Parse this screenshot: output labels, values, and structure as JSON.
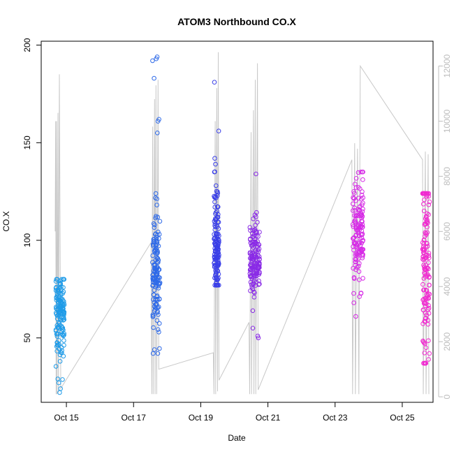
{
  "chart_data": {
    "type": "scatter",
    "title": "ATOM3 Northbound CO.X",
    "xlabel": "Date",
    "ylabel": "CO.X",
    "xlim": [
      "2014-10-14T06:00",
      "2014-10-25T22:00"
    ],
    "ylim": [
      17,
      202
    ],
    "y2lim": [
      -200,
      12900
    ],
    "x_ticks": [
      {
        "date": "2014-10-15",
        "label": "Oct 15"
      },
      {
        "date": "2014-10-17",
        "label": "Oct 17"
      },
      {
        "date": "2014-10-19",
        "label": "Oct 19"
      },
      {
        "date": "2014-10-21",
        "label": "Oct 21"
      },
      {
        "date": "2014-10-23",
        "label": "Oct 23"
      },
      {
        "date": "2014-10-25",
        "label": "Oct 25"
      }
    ],
    "y_ticks": [
      50,
      100,
      150,
      200
    ],
    "y2_ticks": [
      0,
      2000,
      4000,
      6000,
      8000,
      10000,
      12000
    ],
    "grid": false,
    "colors": {
      "axis": "#000000",
      "right_axis": "#bdbdbd",
      "gray_line": "#c8c8c8"
    },
    "point_groups": [
      {
        "t0": "2014-10-14T16:30",
        "t1": "2014-10-14T22:30",
        "color": "#1e9be8",
        "y_mean": 62,
        "y_sd": 12,
        "y_min": 22,
        "y_max": 80,
        "outliers": [
          22,
          24,
          27,
          29,
          80,
          79
        ]
      },
      {
        "t0": "2014-10-17T13:30",
        "t1": "2014-10-17T19:00",
        "color": "#2e6ae8",
        "y_mean": 85,
        "y_sd": 16,
        "y_min": 42,
        "y_max": 194,
        "outliers": [
          194,
          193,
          192,
          183,
          162,
          161,
          155,
          42,
          44,
          53
        ]
      },
      {
        "t0": "2014-10-19T09:30",
        "t1": "2014-10-19T13:00",
        "color": "#3a3fe8",
        "y_mean": 97,
        "y_sd": 13,
        "y_min": 77,
        "y_max": 181,
        "outliers": [
          181,
          156,
          142,
          139,
          135,
          128
        ]
      },
      {
        "t0": "2014-10-20T11:00",
        "t1": "2014-10-20T18:00",
        "color": "#8a2be6",
        "y_mean": 90,
        "y_sd": 9,
        "y_min": 50,
        "y_max": 134,
        "outliers": [
          134,
          113,
          112,
          111,
          50,
          51,
          55
        ]
      },
      {
        "t0": "2014-10-23T12:30",
        "t1": "2014-10-23T20:00",
        "color": "#d62ae6",
        "y_mean": 104,
        "y_sd": 12,
        "y_min": 61,
        "y_max": 135,
        "outliers": [
          135,
          127,
          125,
          61,
          68,
          73
        ]
      },
      {
        "t0": "2014-10-25T14:30",
        "t1": "2014-10-25T19:30",
        "color": "#f02ad0",
        "y_mean": 90,
        "y_sd": 25,
        "y_min": 37,
        "y_max": 124,
        "outliers": [
          124,
          123,
          37,
          39,
          42,
          45,
          48
        ]
      }
    ],
    "gray_path": [
      [
        "2014-10-14T16:00",
        6000
      ],
      [
        "2014-10-14T16:20",
        10000
      ],
      [
        "2014-10-14T16:40",
        100
      ],
      [
        "2014-10-14T17:00",
        10000
      ],
      [
        "2014-10-14T17:20",
        100
      ],
      [
        "2014-10-14T18:00",
        10300
      ],
      [
        "2014-10-14T18:20",
        150
      ],
      [
        "2014-10-14T19:00",
        11700
      ],
      [
        "2014-10-14T20:00",
        300
      ],
      [
        "2014-10-17T12:30",
        5600
      ],
      [
        "2014-10-17T13:00",
        100
      ],
      [
        "2014-10-17T13:40",
        9800
      ],
      [
        "2014-10-17T14:00",
        100
      ],
      [
        "2014-10-17T15:00",
        10800
      ],
      [
        "2014-10-17T15:20",
        100
      ],
      [
        "2014-10-17T16:00",
        11300
      ],
      [
        "2014-10-17T16:30",
        100
      ],
      [
        "2014-10-17T17:30",
        11500
      ],
      [
        "2014-10-17T18:00",
        1000
      ],
      [
        "2014-10-19T09:00",
        1600
      ],
      [
        "2014-10-19T09:30",
        100
      ],
      [
        "2014-10-19T10:20",
        10000
      ],
      [
        "2014-10-19T10:40",
        100
      ],
      [
        "2014-10-19T11:30",
        11200
      ],
      [
        "2014-10-19T12:00",
        200
      ],
      [
        "2014-10-19T12:30",
        12500
      ],
      [
        "2014-10-19T13:00",
        600
      ],
      [
        "2014-10-20T10:30",
        2700
      ],
      [
        "2014-10-20T11:00",
        100
      ],
      [
        "2014-10-20T12:00",
        9600
      ],
      [
        "2014-10-20T12:20",
        100
      ],
      [
        "2014-10-20T13:40",
        10400
      ],
      [
        "2014-10-20T14:00",
        100
      ],
      [
        "2014-10-20T15:00",
        11500
      ],
      [
        "2014-10-20T15:20",
        100
      ],
      [
        "2014-10-20T16:30",
        12100
      ],
      [
        "2014-10-20T17:00",
        250
      ],
      [
        "2014-10-23T12:00",
        8600
      ],
      [
        "2014-10-23T12:30",
        100
      ],
      [
        "2014-10-23T14:00",
        9200
      ],
      [
        "2014-10-23T14:30",
        100
      ],
      [
        "2014-10-23T16:00",
        9000
      ],
      [
        "2014-10-23T17:00",
        100
      ],
      [
        "2014-10-23T18:00",
        12000
      ],
      [
        "2014-10-25T14:30",
        8600
      ],
      [
        "2014-10-25T15:00",
        100
      ],
      [
        "2014-10-25T16:30",
        8900
      ],
      [
        "2014-10-25T17:00",
        100
      ],
      [
        "2014-10-25T18:30",
        8800
      ],
      [
        "2014-10-25T19:00",
        100
      ]
    ]
  }
}
